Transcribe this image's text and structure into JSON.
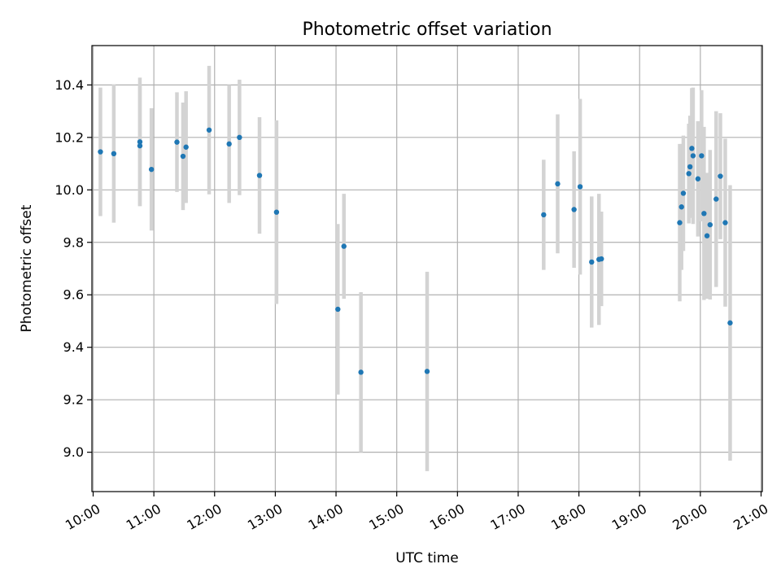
{
  "chart_data": {
    "type": "scatter",
    "title": "Photometric offset variation",
    "xlabel": "UTC time",
    "ylabel": "Photometric offset",
    "x_unit": "hours UTC",
    "xlim": [
      9.98,
      21.02
    ],
    "ylim": [
      8.85,
      10.55
    ],
    "x_ticks": [
      {
        "value": 10,
        "label": "10:00"
      },
      {
        "value": 11,
        "label": "11:00"
      },
      {
        "value": 12,
        "label": "12:00"
      },
      {
        "value": 13,
        "label": "13:00"
      },
      {
        "value": 14,
        "label": "14:00"
      },
      {
        "value": 15,
        "label": "15:00"
      },
      {
        "value": 16,
        "label": "16:00"
      },
      {
        "value": 17,
        "label": "17:00"
      },
      {
        "value": 18,
        "label": "18:00"
      },
      {
        "value": 19,
        "label": "19:00"
      },
      {
        "value": 20,
        "label": "20:00"
      },
      {
        "value": 21,
        "label": "21:00"
      }
    ],
    "y_ticks": [
      {
        "value": 9.0,
        "label": "9.0"
      },
      {
        "value": 9.2,
        "label": "9.2"
      },
      {
        "value": 9.4,
        "label": "9.4"
      },
      {
        "value": 9.6,
        "label": "9.6"
      },
      {
        "value": 9.8,
        "label": "9.8"
      },
      {
        "value": 10.0,
        "label": "10.0"
      },
      {
        "value": 10.2,
        "label": "10.2"
      },
      {
        "value": 10.4,
        "label": "10.4"
      }
    ],
    "grid": true,
    "legend": "none",
    "marker_color": "#1f77b4",
    "errorbar_color": "#d3d3d3",
    "series": [
      {
        "points": [
          {
            "x": 10.12,
            "y": 10.145,
            "err": 0.245
          },
          {
            "x": 10.34,
            "y": 10.138,
            "err": 0.263
          },
          {
            "x": 10.77,
            "y": 10.183,
            "err": 0.245
          },
          {
            "x": 10.77,
            "y": 10.168,
            "err": 0.23
          },
          {
            "x": 10.96,
            "y": 10.078,
            "err": 0.233
          },
          {
            "x": 11.38,
            "y": 10.182,
            "err": 0.19
          },
          {
            "x": 11.48,
            "y": 10.128,
            "err": 0.205
          },
          {
            "x": 11.53,
            "y": 10.163,
            "err": 0.213
          },
          {
            "x": 11.91,
            "y": 10.228,
            "err": 0.245
          },
          {
            "x": 12.24,
            "y": 10.175,
            "err": 0.225
          },
          {
            "x": 12.41,
            "y": 10.2,
            "err": 0.22
          },
          {
            "x": 12.74,
            "y": 10.055,
            "err": 0.222
          },
          {
            "x": 13.02,
            "y": 9.915,
            "err": 0.35
          },
          {
            "x": 14.03,
            "y": 9.545,
            "err": 0.325
          },
          {
            "x": 14.13,
            "y": 9.785,
            "err": 0.2
          },
          {
            "x": 14.41,
            "y": 9.305,
            "err": 0.305
          },
          {
            "x": 15.5,
            "y": 9.308,
            "err": 0.38
          },
          {
            "x": 17.42,
            "y": 9.905,
            "err": 0.21
          },
          {
            "x": 17.65,
            "y": 10.023,
            "err": 0.265
          },
          {
            "x": 17.92,
            "y": 9.925,
            "err": 0.222
          },
          {
            "x": 18.02,
            "y": 10.012,
            "err": 0.335
          },
          {
            "x": 18.21,
            "y": 9.725,
            "err": 0.25
          },
          {
            "x": 18.33,
            "y": 9.735,
            "err": 0.25
          },
          {
            "x": 18.37,
            "y": 9.737,
            "err": 0.18
          },
          {
            "x": 19.66,
            "y": 9.875,
            "err": 0.3
          },
          {
            "x": 19.69,
            "y": 9.935,
            "err": 0.24
          },
          {
            "x": 19.72,
            "y": 9.987,
            "err": 0.22
          },
          {
            "x": 19.81,
            "y": 10.062,
            "err": 0.19
          },
          {
            "x": 19.83,
            "y": 10.088,
            "err": 0.195
          },
          {
            "x": 19.86,
            "y": 10.158,
            "err": 0.23
          },
          {
            "x": 19.88,
            "y": 10.13,
            "err": 0.26
          },
          {
            "x": 19.96,
            "y": 10.042,
            "err": 0.22
          },
          {
            "x": 20.02,
            "y": 10.13,
            "err": 0.25
          },
          {
            "x": 20.06,
            "y": 9.91,
            "err": 0.33
          },
          {
            "x": 20.11,
            "y": 9.825,
            "err": 0.24
          },
          {
            "x": 20.16,
            "y": 9.867,
            "err": 0.285
          },
          {
            "x": 20.26,
            "y": 9.965,
            "err": 0.335
          },
          {
            "x": 20.33,
            "y": 10.052,
            "err": 0.24
          },
          {
            "x": 20.41,
            "y": 9.875,
            "err": 0.32
          },
          {
            "x": 20.49,
            "y": 9.493,
            "err": 0.525
          }
        ]
      }
    ]
  }
}
